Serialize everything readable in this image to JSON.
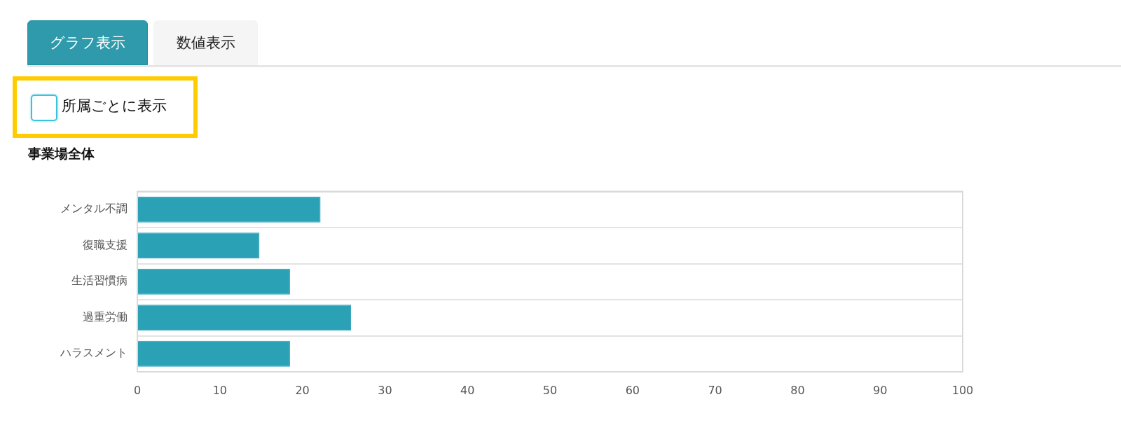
{
  "chart_data": {
    "type": "bar",
    "orientation": "horizontal",
    "title": "事業場全体",
    "annotations": [
      "グラフ表示",
      "数値表示",
      "所属ごとに表示"
    ],
    "categories": [
      "メンタル不調",
      "復職支援",
      "生活習慣病",
      "過重労働",
      "ハラスメント"
    ],
    "values": [
      22.2,
      14.8,
      18.5,
      25.9,
      18.5
    ],
    "color": "#2ba1b6",
    "xlim": [
      0,
      100
    ],
    "xticks": [
      0,
      10,
      20,
      30,
      40,
      50,
      60,
      70,
      80,
      90,
      100
    ],
    "grid": "y",
    "legend": false
  }
}
